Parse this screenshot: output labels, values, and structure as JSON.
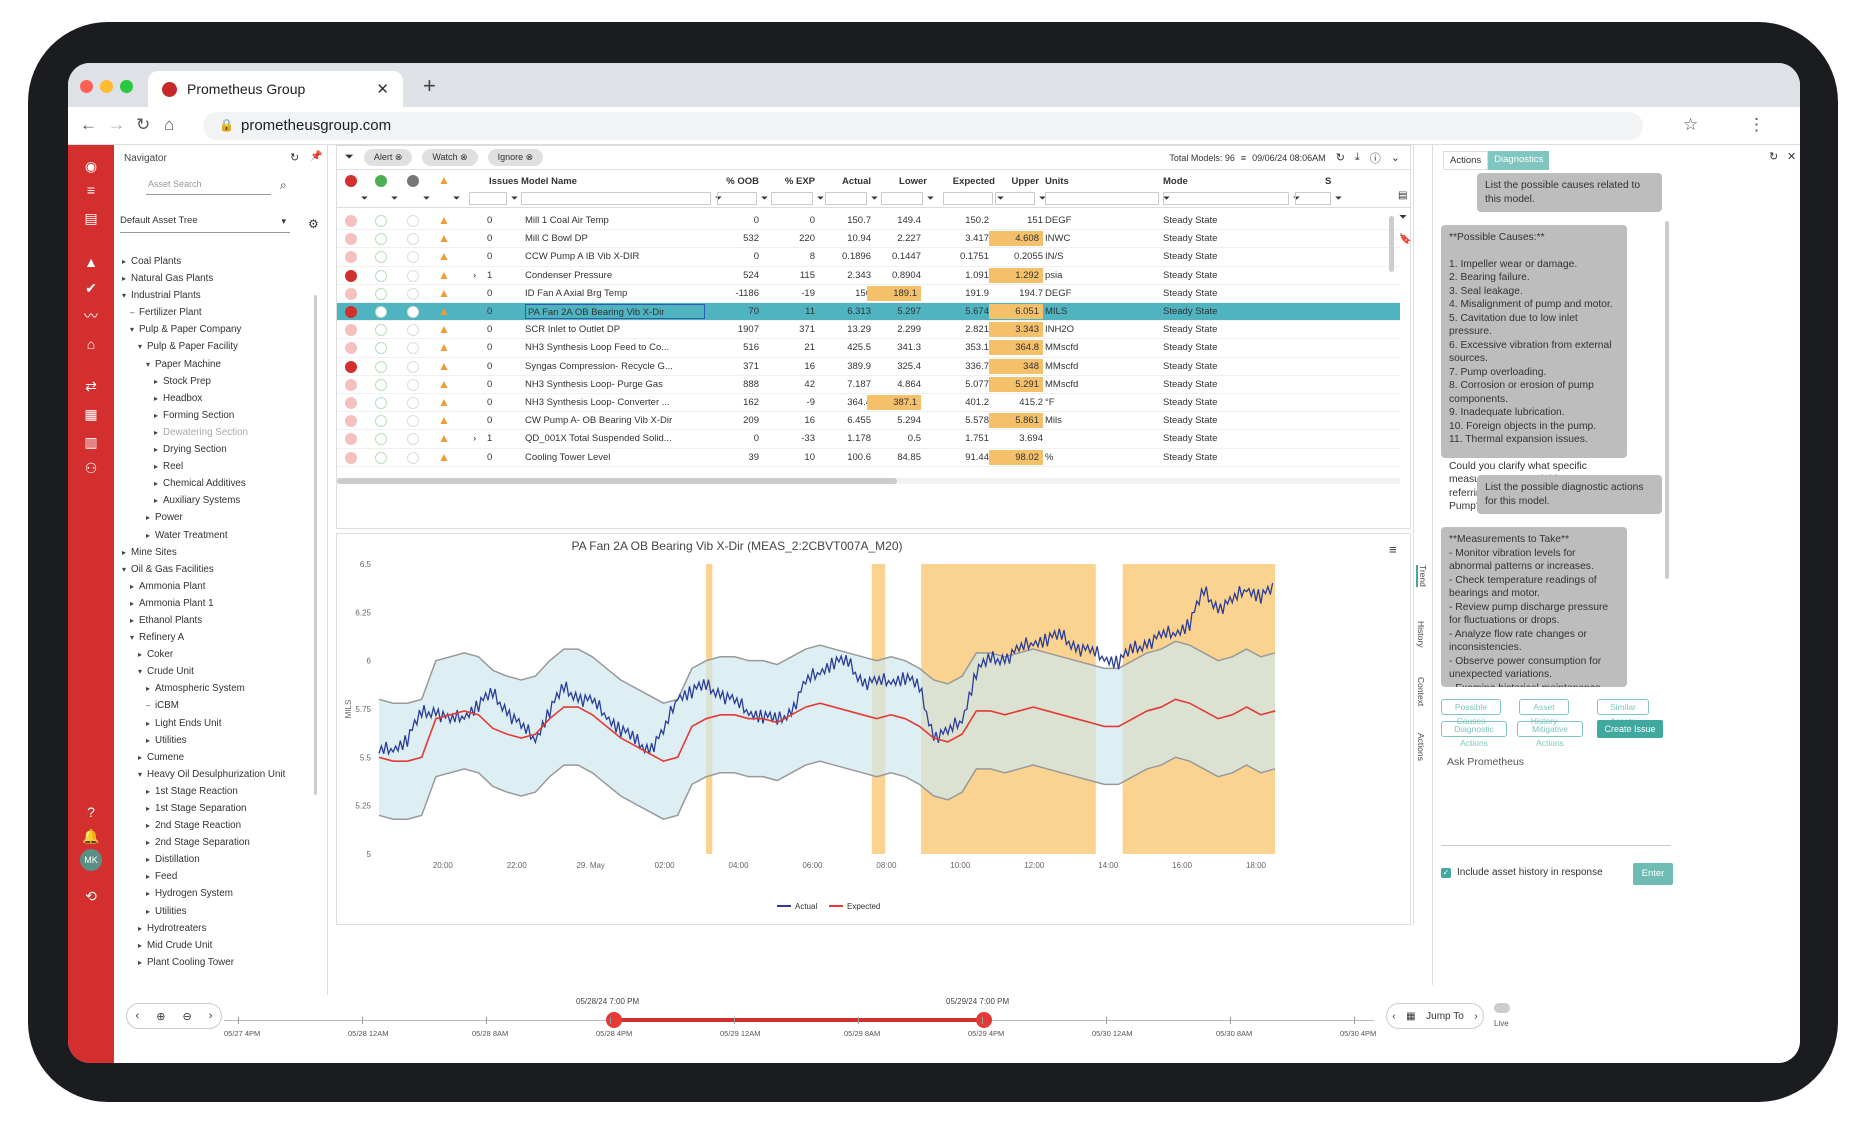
{
  "browser": {
    "tab_title": "Prometheus Group",
    "url": "prometheusgroup.com"
  },
  "navigator": {
    "title": "Navigator",
    "search_placeholder": "Asset Search",
    "tree_select": "Default Asset Tree",
    "tree": [
      {
        "d": 0,
        "a": "▸",
        "t": "Coal Plants"
      },
      {
        "d": 0,
        "a": "▸",
        "t": "Natural Gas Plants"
      },
      {
        "d": 0,
        "a": "▾",
        "t": "Industrial Plants"
      },
      {
        "d": 1,
        "a": "–",
        "t": "Fertilizer Plant"
      },
      {
        "d": 1,
        "a": "▾",
        "t": "Pulp & Paper Company"
      },
      {
        "d": 2,
        "a": "▾",
        "t": "Pulp & Paper Facility"
      },
      {
        "d": 3,
        "a": "▾",
        "t": "Paper Machine"
      },
      {
        "d": 4,
        "a": "▸",
        "t": "Stock Prep"
      },
      {
        "d": 4,
        "a": "▸",
        "t": "Headbox"
      },
      {
        "d": 4,
        "a": "▸",
        "t": "Forming Section"
      },
      {
        "d": 4,
        "a": "▸",
        "t": "Dewatering Section"
      },
      {
        "d": 4,
        "a": "▸",
        "t": "Drying Section"
      },
      {
        "d": 4,
        "a": "▸",
        "t": "Reel"
      },
      {
        "d": 4,
        "a": "▸",
        "t": "Chemical Additives"
      },
      {
        "d": 4,
        "a": "▸",
        "t": "Auxiliary Systems"
      },
      {
        "d": 3,
        "a": "▸",
        "t": "Power"
      },
      {
        "d": 3,
        "a": "▸",
        "t": "Water Treatment"
      },
      {
        "d": 0,
        "a": "▸",
        "t": "Mine Sites"
      },
      {
        "d": 0,
        "a": "▾",
        "t": "Oil & Gas Facilities"
      },
      {
        "d": 1,
        "a": "▸",
        "t": "Ammonia Plant"
      },
      {
        "d": 1,
        "a": "▸",
        "t": "Ammonia Plant 1"
      },
      {
        "d": 1,
        "a": "▸",
        "t": "Ethanol Plants"
      },
      {
        "d": 1,
        "a": "▾",
        "t": "Refinery A"
      },
      {
        "d": 2,
        "a": "▸",
        "t": "Coker"
      },
      {
        "d": 2,
        "a": "▾",
        "t": "Crude Unit"
      },
      {
        "d": 3,
        "a": "▸",
        "t": "Atmospheric System"
      },
      {
        "d": 3,
        "a": "–",
        "t": "iCBM"
      },
      {
        "d": 3,
        "a": "▸",
        "t": "Light Ends Unit"
      },
      {
        "d": 3,
        "a": "▸",
        "t": "Utilities"
      },
      {
        "d": 2,
        "a": "▸",
        "t": "Cumene"
      },
      {
        "d": 2,
        "a": "▾",
        "t": "Heavy Oil Desulphurization Unit"
      },
      {
        "d": 3,
        "a": "▸",
        "t": "1st Stage Reaction"
      },
      {
        "d": 3,
        "a": "▸",
        "t": "1st Stage Separation"
      },
      {
        "d": 3,
        "a": "▸",
        "t": "2nd Stage Reaction"
      },
      {
        "d": 3,
        "a": "▸",
        "t": "2nd Stage Separation"
      },
      {
        "d": 3,
        "a": "▸",
        "t": "Distillation"
      },
      {
        "d": 3,
        "a": "▸",
        "t": "Feed"
      },
      {
        "d": 3,
        "a": "▸",
        "t": "Hydrogen System"
      },
      {
        "d": 3,
        "a": "▸",
        "t": "Utilities"
      },
      {
        "d": 2,
        "a": "▸",
        "t": "Hydrotreaters"
      },
      {
        "d": 2,
        "a": "▸",
        "t": "Mid Crude Unit"
      },
      {
        "d": 2,
        "a": "▸",
        "t": "Plant Cooling Tower"
      }
    ]
  },
  "grid": {
    "chips": [
      "Alert",
      "Watch",
      "Ignore"
    ],
    "total_models": "Total Models: 96",
    "timestamp": "09/06/24 08:06AM",
    "headers": {
      "issues": "Issues",
      "model": "Model Name",
      "oob": "% OOB",
      "exp": "% EXP",
      "actual": "Actual",
      "lower": "Lower",
      "expected": "Expected",
      "upper": "Upper",
      "units": "Units",
      "mode": "Mode",
      "s": "S"
    },
    "rows": [
      {
        "alert": false,
        "exp": "",
        "issues": "0",
        "model": "Mill 1 Coal Air Temp",
        "oob": "0",
        "pexp": "0",
        "actual": "150.7",
        "lower": "149.4",
        "expected": "150.2",
        "upper": "151",
        "units": "DEGF",
        "mode": "Steady State",
        "hl": ""
      },
      {
        "alert": false,
        "exp": "",
        "issues": "0",
        "model": "Mill C Bowl DP",
        "oob": "532",
        "pexp": "220",
        "actual": "10.94",
        "lower": "2.227",
        "expected": "3.417",
        "upper": "4.608",
        "units": "INWC",
        "mode": "Steady State",
        "hl": "upper"
      },
      {
        "alert": false,
        "exp": "",
        "issues": "0",
        "model": "CCW Pump A IB Vib X-DIR",
        "oob": "0",
        "pexp": "8",
        "actual": "0.1896",
        "lower": "0.1447",
        "expected": "0.1751",
        "upper": "0.2055",
        "units": "IN/S",
        "mode": "Steady State",
        "hl": ""
      },
      {
        "alert": true,
        "exp": "›",
        "issues": "1",
        "model": "Condenser Pressure",
        "oob": "524",
        "pexp": "115",
        "actual": "2.343",
        "lower": "0.8904",
        "expected": "1.091",
        "upper": "1.292",
        "units": "psia",
        "mode": "Steady State",
        "hl": "upper"
      },
      {
        "alert": false,
        "exp": "",
        "issues": "0",
        "model": "ID Fan A Axial Brg Temp",
        "oob": "-1186",
        "pexp": "-19",
        "actual": "156",
        "lower": "189.1",
        "expected": "191.9",
        "upper": "194.7",
        "units": "DEGF",
        "mode": "Steady State",
        "hl": "lower"
      },
      {
        "alert": true,
        "exp": "",
        "issues": "0",
        "model": "PA Fan 2A OB Bearing Vib X-Dir",
        "oob": "70",
        "pexp": "11",
        "actual": "6.313",
        "lower": "5.297",
        "expected": "5.674",
        "upper": "6.051",
        "units": "MILS",
        "mode": "Steady State",
        "hl": "upper",
        "sel": true
      },
      {
        "alert": false,
        "exp": "",
        "issues": "0",
        "model": "SCR Inlet to Outlet DP",
        "oob": "1907",
        "pexp": "371",
        "actual": "13.29",
        "lower": "2.299",
        "expected": "2.821",
        "upper": "3.343",
        "units": "INH2O",
        "mode": "Steady State",
        "hl": "upper"
      },
      {
        "alert": false,
        "exp": "",
        "issues": "0",
        "model": "NH3 Synthesis Loop Feed to Co...",
        "oob": "516",
        "pexp": "21",
        "actual": "425.5",
        "lower": "341.3",
        "expected": "353.1",
        "upper": "364.8",
        "units": "MMscfd",
        "mode": "Steady State",
        "hl": "upper"
      },
      {
        "alert": true,
        "exp": "",
        "issues": "0",
        "model": "Syngas Compression- Recycle G...",
        "oob": "371",
        "pexp": "16",
        "actual": "389.9",
        "lower": "325.4",
        "expected": "336.7",
        "upper": "348",
        "units": "MMscfd",
        "mode": "Steady State",
        "hl": "upper"
      },
      {
        "alert": false,
        "exp": "",
        "issues": "0",
        "model": "NH3 Synthesis Loop- Purge Gas",
        "oob": "888",
        "pexp": "42",
        "actual": "7.187",
        "lower": "4.864",
        "expected": "5.077",
        "upper": "5.291",
        "units": "MMscfd",
        "mode": "Steady State",
        "hl": "upper"
      },
      {
        "alert": false,
        "exp": "",
        "issues": "0",
        "model": "NH3 Synthesis Loop- Converter ...",
        "oob": "162",
        "pexp": "-9",
        "actual": "364.4",
        "lower": "387.1",
        "expected": "401.2",
        "upper": "415.2",
        "units": "°F",
        "mode": "Steady State",
        "hl": "lower"
      },
      {
        "alert": false,
        "exp": "",
        "issues": "0",
        "model": "CW Pump A- OB Bearing Vib X-Dir",
        "oob": "209",
        "pexp": "16",
        "actual": "6.455",
        "lower": "5.294",
        "expected": "5.578",
        "upper": "5.861",
        "units": "Mils",
        "mode": "Steady State",
        "hl": "upper"
      },
      {
        "alert": false,
        "exp": "›",
        "issues": "1",
        "model": "QD_001X Total Suspended Solid...",
        "oob": "0",
        "pexp": "-33",
        "actual": "1.178",
        "lower": "0.5",
        "expected": "1.751",
        "upper": "3.694",
        "units": "",
        "mode": "Steady State",
        "hl": ""
      },
      {
        "alert": false,
        "exp": "",
        "issues": "0",
        "model": "Cooling Tower Level",
        "oob": "39",
        "pexp": "10",
        "actual": "100.6",
        "lower": "84.85",
        "expected": "91.44",
        "upper": "98.02",
        "units": "%",
        "mode": "Steady State",
        "hl": "upper"
      }
    ]
  },
  "chart_data": {
    "type": "line",
    "title": "PA Fan 2A OB Bearing Vib X-Dir (MEAS_2:2CBVT007A_M20)",
    "ylabel": "MILS",
    "ylim": [
      5,
      6.5
    ],
    "yticks": [
      "6.5",
      "6.25",
      "6",
      "5.75",
      "5.5",
      "5.25",
      "5"
    ],
    "xticks": [
      "20:00",
      "22:00",
      "29. May",
      "02:00",
      "04:00",
      "06:00",
      "08:00",
      "10:00",
      "12:00",
      "14:00",
      "16:00",
      "18:00"
    ],
    "series": [
      {
        "name": "Actual",
        "color": "#2b3d9a",
        "values": [
          5.52,
          5.55,
          5.6,
          5.72,
          5.75,
          5.68,
          5.72,
          5.78,
          5.82,
          5.75,
          5.65,
          5.6,
          5.75,
          5.85,
          5.82,
          5.78,
          5.72,
          5.65,
          5.58,
          5.55,
          5.62,
          5.82,
          5.85,
          5.86,
          5.84,
          5.78,
          5.74,
          5.72,
          5.68,
          5.75,
          5.88,
          5.95,
          6.0,
          5.98,
          5.9,
          5.88,
          5.9,
          5.92,
          5.85,
          5.62,
          5.62,
          5.7,
          5.95,
          6.0,
          6.02,
          6.05,
          6.1,
          6.12,
          6.12,
          6.08,
          6.04,
          6.02,
          6.0,
          6.05,
          6.1,
          6.12,
          6.15,
          6.2,
          6.35,
          6.28,
          6.3,
          6.38,
          6.34,
          6.36
        ]
      },
      {
        "name": "Expected",
        "color": "#e53935",
        "values": [
          5.5,
          5.48,
          5.48,
          5.5,
          5.7,
          5.72,
          5.74,
          5.72,
          5.65,
          5.62,
          5.6,
          5.62,
          5.7,
          5.76,
          5.76,
          5.72,
          5.66,
          5.6,
          5.56,
          5.52,
          5.48,
          5.5,
          5.66,
          5.7,
          5.72,
          5.72,
          5.7,
          5.7,
          5.68,
          5.72,
          5.76,
          5.78,
          5.76,
          5.74,
          5.72,
          5.7,
          5.72,
          5.7,
          5.66,
          5.6,
          5.58,
          5.62,
          5.74,
          5.74,
          5.72,
          5.74,
          5.76,
          5.74,
          5.72,
          5.7,
          5.68,
          5.66,
          5.66,
          5.7,
          5.74,
          5.76,
          5.8,
          5.78,
          5.74,
          5.7,
          5.72,
          5.76,
          5.72,
          5.74
        ]
      }
    ],
    "legend": "bottom",
    "band_color": "#cfe8ee",
    "alert_color": "#f9c46b"
  },
  "sidetabs": [
    "Trend",
    "History",
    "Context",
    "Actions"
  ],
  "timeline": {
    "left_label": "05/28/24 7:00 PM",
    "right_label": "05/29/24 7:00 PM",
    "ticks": [
      "05/27 4PM",
      "05/28 12AM",
      "05/28 8AM",
      "05/28 4PM",
      "05/29 12AM",
      "05/29 8AM",
      "05/29 4PM",
      "05/30 12AM",
      "05/30 8AM",
      "05/30 4PM"
    ],
    "jump_to": "Jump To",
    "live": "Live"
  },
  "assistant": {
    "tabs": [
      "Actions",
      "Diagnostics"
    ],
    "q1": "List the possible causes related to this model.",
    "a1": [
      "**Possible Causes:**",
      "",
      "1. Impeller wear or damage.",
      "2. Bearing failure.",
      "3. Seal leakage.",
      "4. Misalignment of pump and motor.",
      "5. Cavitation due to low inlet pressure.",
      "6. Excessive vibration from external sources.",
      "7. Pump overloading.",
      "8. Corrosion or erosion of pump components.",
      "9. Inadequate lubrication.",
      "10. Foreign objects in the pump.",
      "11. Thermal expansion issues.",
      "",
      "Could you clarify what specific measurement or variable type you're referring to for the Boiler Feed Pump?"
    ],
    "q2": "List the possible diagnostic actions for this model.",
    "a2": [
      "**Measurements to Take**",
      "- Monitor vibration levels for abnormal patterns or increases.",
      "- Check temperature readings of bearings and motor.",
      "- Review pump discharge pressure for fluctuations or drops.",
      "- Analyze flow rate changes or inconsistencies.",
      "- Observe power consumption for unexpected variations.",
      "- Examine historical maintenance and performance data for trends."
    ],
    "quick": [
      "Possible Causes",
      "Asset History",
      "Similar Assets",
      "Diagnostic Actions",
      "Mitigative Actions"
    ],
    "create_issue": "Create Issue",
    "ask_placeholder": "Ask Prometheus",
    "include_history": "Include asset history in response",
    "enter": "Enter"
  },
  "user_initials": "MK"
}
